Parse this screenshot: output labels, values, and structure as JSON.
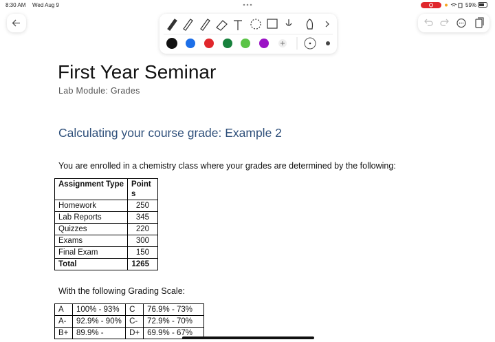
{
  "status_bar": {
    "time": "8:30 AM",
    "date": "Wed Aug 9",
    "battery": "59%"
  },
  "document": {
    "title": "First Year Seminar",
    "subtitle": "Lab Module: Grades",
    "heading": "Calculating your course grade: Example 2",
    "intro": "You are enrolled in a chemistry class where your grades are determined by the following:",
    "table": {
      "header": [
        "Assignment Type",
        "Points"
      ],
      "rows": [
        [
          "Homework",
          250
        ],
        [
          "Lab Reports",
          345
        ],
        [
          "Quizzes",
          220
        ],
        [
          "Exams",
          300
        ],
        [
          "Final Exam",
          150
        ]
      ],
      "total": [
        "Total",
        1265
      ]
    },
    "scale_intro": "With the following Grading Scale:",
    "scale": {
      "rows": [
        [
          "A",
          "100% - 93%",
          "C",
          "76.9% - 73%"
        ],
        [
          "A-",
          "92.9% - 90%",
          "C-",
          "72.9% - 70%"
        ],
        [
          "B+",
          "89.9% -",
          "D+",
          "69.9% - 67%"
        ]
      ]
    }
  }
}
